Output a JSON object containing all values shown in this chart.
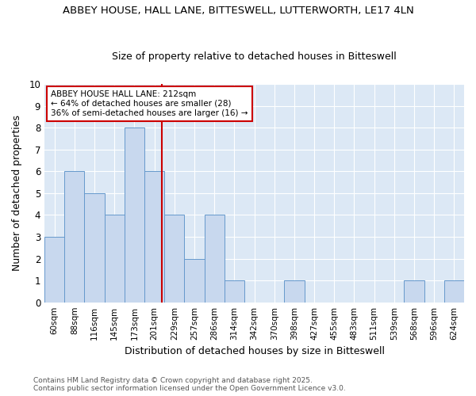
{
  "title1": "ABBEY HOUSE, HALL LANE, BITTESWELL, LUTTERWORTH, LE17 4LN",
  "title2": "Size of property relative to detached houses in Bitteswell",
  "xlabel": "Distribution of detached houses by size in Bitteswell",
  "ylabel": "Number of detached properties",
  "bin_labels": [
    "60sqm",
    "88sqm",
    "116sqm",
    "145sqm",
    "173sqm",
    "201sqm",
    "229sqm",
    "257sqm",
    "286sqm",
    "314sqm",
    "342sqm",
    "370sqm",
    "398sqm",
    "427sqm",
    "455sqm",
    "483sqm",
    "511sqm",
    "539sqm",
    "568sqm",
    "596sqm",
    "624sqm"
  ],
  "bar_values": [
    3,
    6,
    5,
    4,
    8,
    6,
    4,
    2,
    4,
    1,
    0,
    0,
    1,
    0,
    0,
    0,
    0,
    0,
    1,
    0,
    1
  ],
  "bar_color": "#c8d8ee",
  "bar_edgecolor": "#6699cc",
  "redline_color": "#cc0000",
  "annotation_title": "ABBEY HOUSE HALL LANE: 212sqm",
  "annotation_line1": "← 64% of detached houses are smaller (28)",
  "annotation_line2": "36% of semi-detached houses are larger (16) →",
  "annotation_box_color": "#ffffff",
  "annotation_box_edgecolor": "#cc0000",
  "ylim": [
    0,
    10
  ],
  "yticks": [
    0,
    1,
    2,
    3,
    4,
    5,
    6,
    7,
    8,
    9,
    10
  ],
  "plot_bg_color": "#dce8f5",
  "fig_bg_color": "#ffffff",
  "grid_color": "#ffffff",
  "footnote1": "Contains HM Land Registry data © Crown copyright and database right 2025.",
  "footnote2": "Contains public sector information licensed under the Open Government Licence v3.0."
}
